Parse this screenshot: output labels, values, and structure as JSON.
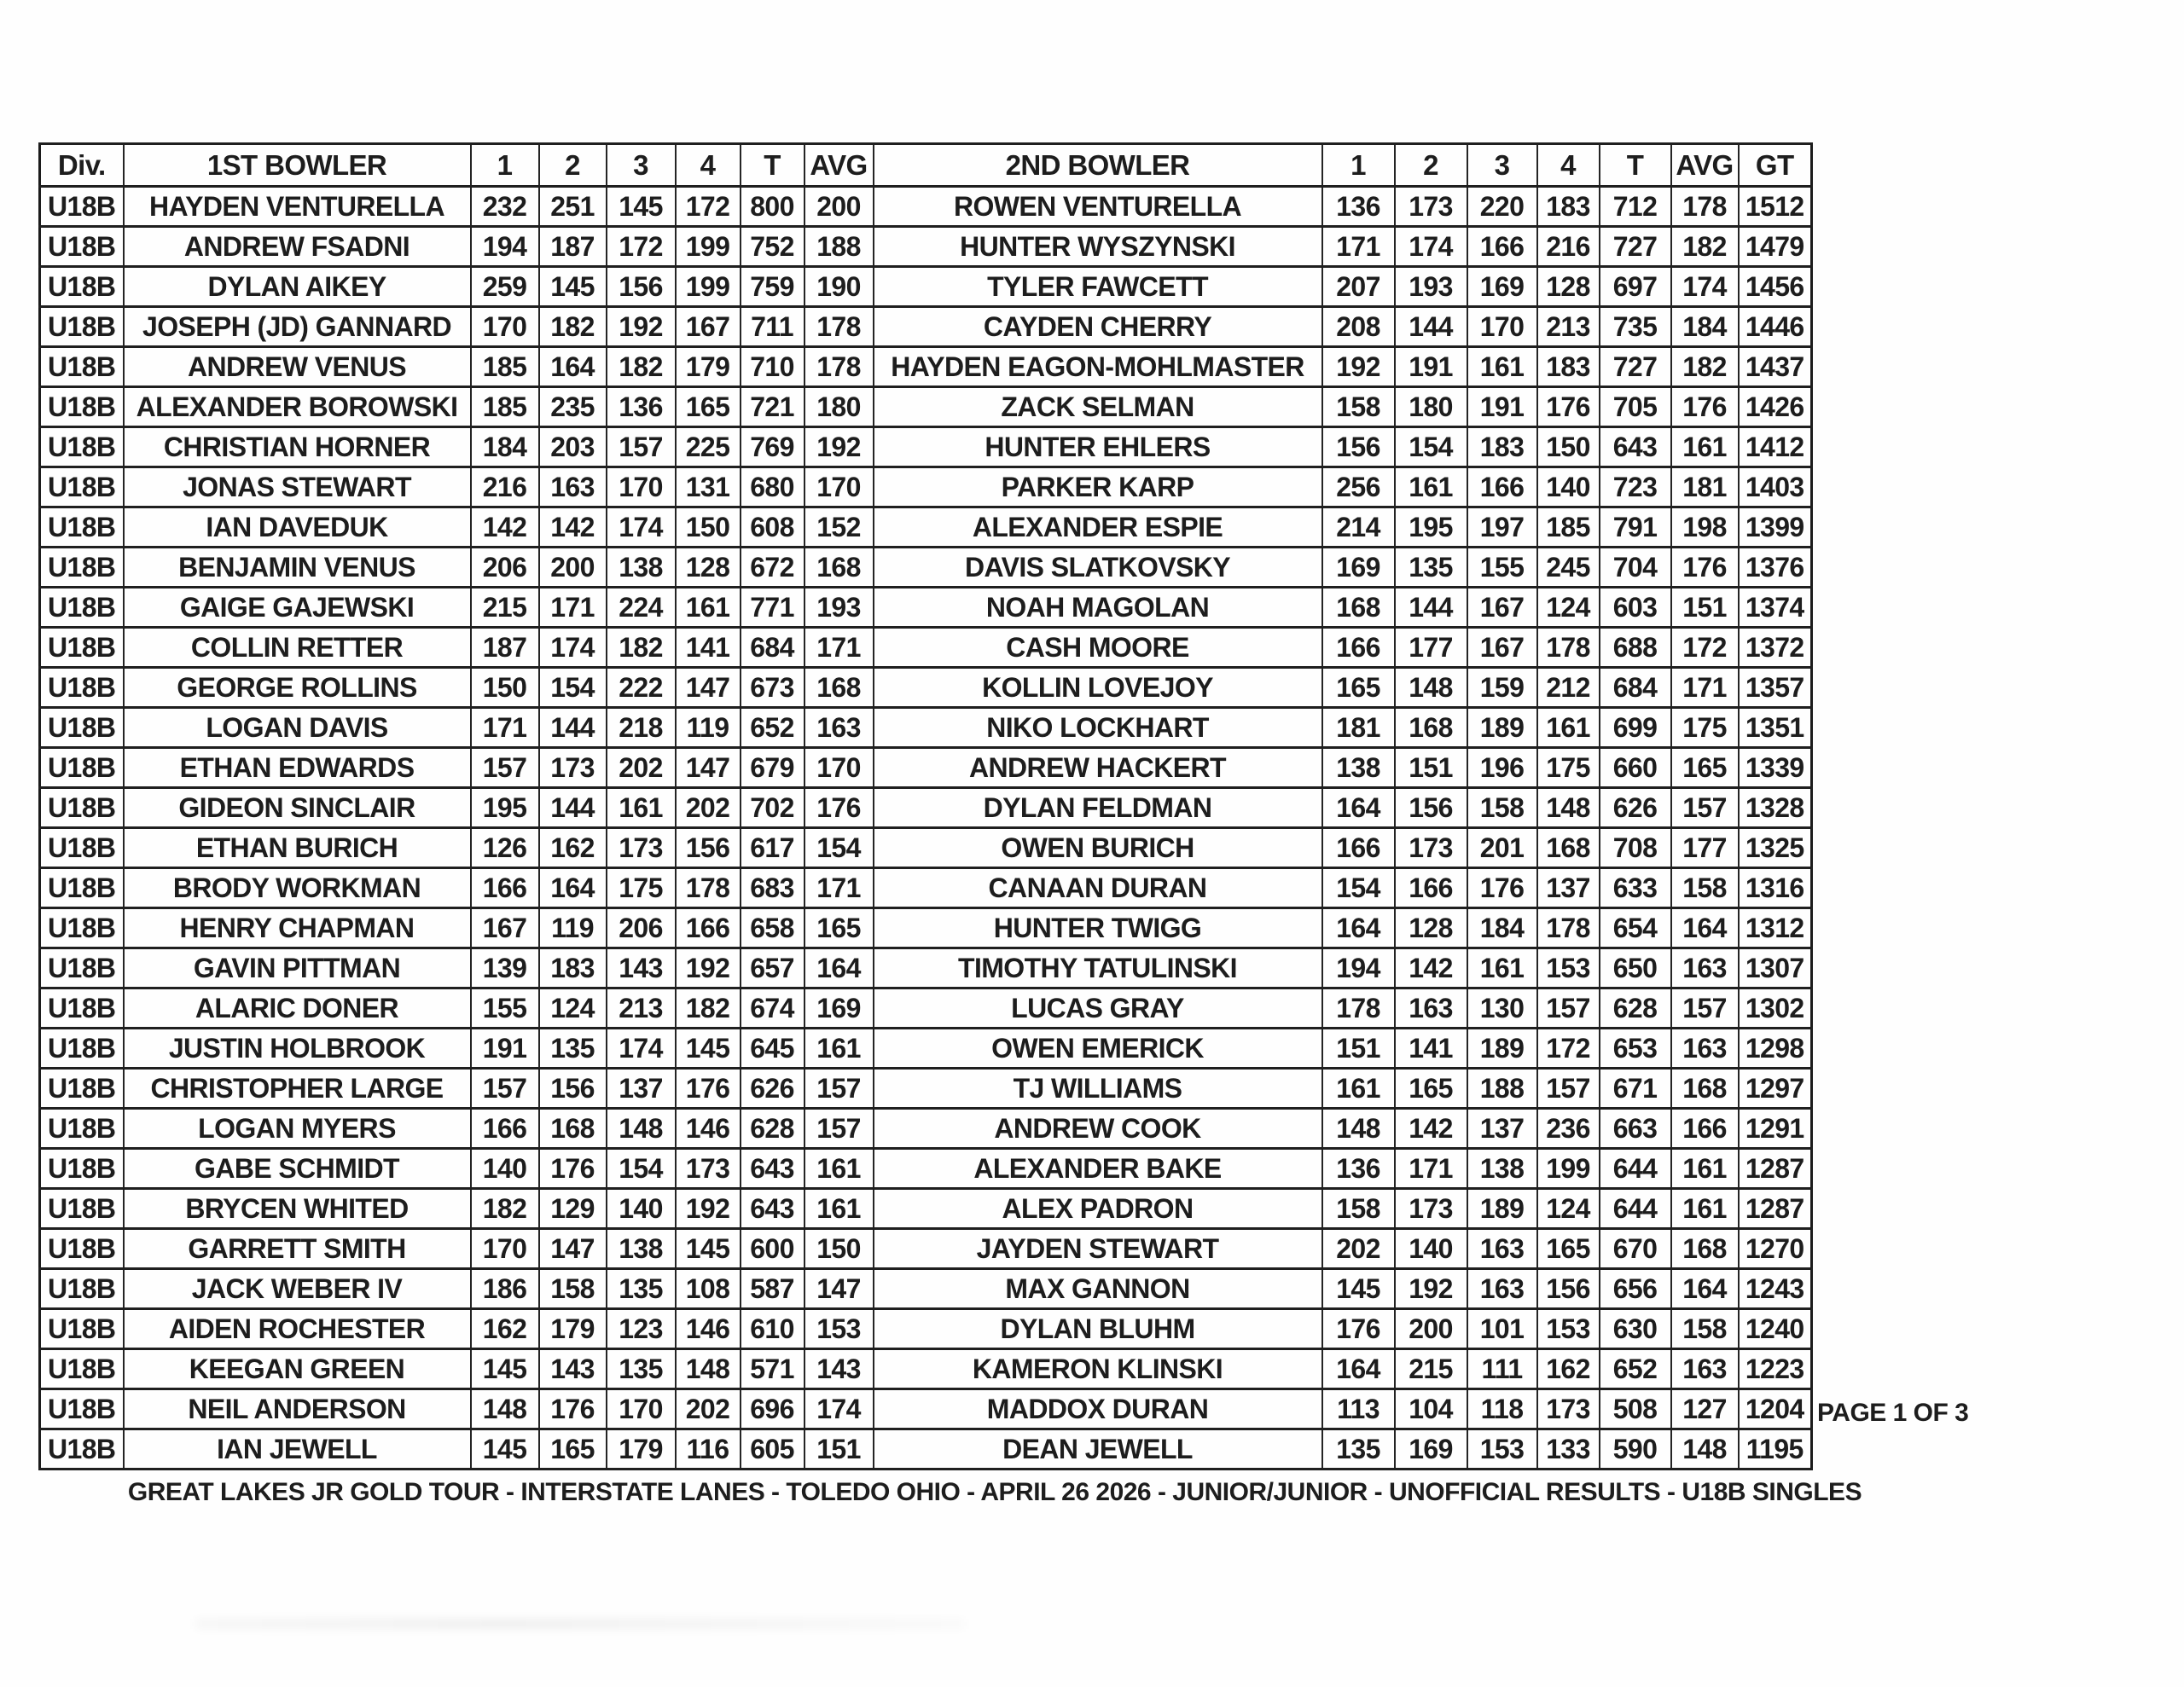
{
  "page": {
    "page_label": "PAGE 1 OF 3",
    "footer": "GREAT LAKES JR GOLD TOUR - INTERSTATE LANES - TOLEDO OHIO - APRIL 26 2026 - JUNIOR/JUNIOR - UNOFFICIAL RESULTS - U18B SINGLES"
  },
  "table": {
    "headers": [
      "Div.",
      "1ST BOWLER",
      "1",
      "2",
      "3",
      "4",
      "T",
      "AVG",
      "2ND BOWLER",
      "1",
      "2",
      "3",
      "4",
      "T",
      "AVG",
      "GT"
    ],
    "rows": [
      [
        "U18B",
        "HAYDEN VENTURELLA",
        232,
        251,
        145,
        172,
        800,
        200,
        "ROWEN VENTURELLA",
        136,
        173,
        220,
        183,
        712,
        178,
        1512
      ],
      [
        "U18B",
        "ANDREW FSADNI",
        194,
        187,
        172,
        199,
        752,
        188,
        "HUNTER WYSZYNSKI",
        171,
        174,
        166,
        216,
        727,
        182,
        1479
      ],
      [
        "U18B",
        "DYLAN AIKEY",
        259,
        145,
        156,
        199,
        759,
        190,
        "TYLER FAWCETT",
        207,
        193,
        169,
        128,
        697,
        174,
        1456
      ],
      [
        "U18B",
        "JOSEPH (JD) GANNARD",
        170,
        182,
        192,
        167,
        711,
        178,
        "CAYDEN CHERRY",
        208,
        144,
        170,
        213,
        735,
        184,
        1446
      ],
      [
        "U18B",
        "ANDREW VENUS",
        185,
        164,
        182,
        179,
        710,
        178,
        "HAYDEN EAGON-MOHLMASTER",
        192,
        191,
        161,
        183,
        727,
        182,
        1437
      ],
      [
        "U18B",
        "ALEXANDER BOROWSKI",
        185,
        235,
        136,
        165,
        721,
        180,
        "ZACK SELMAN",
        158,
        180,
        191,
        176,
        705,
        176,
        1426
      ],
      [
        "U18B",
        "CHRISTIAN HORNER",
        184,
        203,
        157,
        225,
        769,
        192,
        "HUNTER EHLERS",
        156,
        154,
        183,
        150,
        643,
        161,
        1412
      ],
      [
        "U18B",
        "JONAS STEWART",
        216,
        163,
        170,
        131,
        680,
        170,
        "PARKER KARP",
        256,
        161,
        166,
        140,
        723,
        181,
        1403
      ],
      [
        "U18B",
        "IAN DAVEDUK",
        142,
        142,
        174,
        150,
        608,
        152,
        "ALEXANDER ESPIE",
        214,
        195,
        197,
        185,
        791,
        198,
        1399
      ],
      [
        "U18B",
        "BENJAMIN VENUS",
        206,
        200,
        138,
        128,
        672,
        168,
        "DAVIS SLATKOVSKY",
        169,
        135,
        155,
        245,
        704,
        176,
        1376
      ],
      [
        "U18B",
        "GAIGE GAJEWSKI",
        215,
        171,
        224,
        161,
        771,
        193,
        "NOAH MAGOLAN",
        168,
        144,
        167,
        124,
        603,
        151,
        1374
      ],
      [
        "U18B",
        "COLLIN RETTER",
        187,
        174,
        182,
        141,
        684,
        171,
        "CASH MOORE",
        166,
        177,
        167,
        178,
        688,
        172,
        1372
      ],
      [
        "U18B",
        "GEORGE ROLLINS",
        150,
        154,
        222,
        147,
        673,
        168,
        "KOLLIN LOVEJOY",
        165,
        148,
        159,
        212,
        684,
        171,
        1357
      ],
      [
        "U18B",
        "LOGAN DAVIS",
        171,
        144,
        218,
        119,
        652,
        163,
        "NIKO LOCKHART",
        181,
        168,
        189,
        161,
        699,
        175,
        1351
      ],
      [
        "U18B",
        "ETHAN EDWARDS",
        157,
        173,
        202,
        147,
        679,
        170,
        "ANDREW HACKERT",
        138,
        151,
        196,
        175,
        660,
        165,
        1339
      ],
      [
        "U18B",
        "GIDEON SINCLAIR",
        195,
        144,
        161,
        202,
        702,
        176,
        "DYLAN FELDMAN",
        164,
        156,
        158,
        148,
        626,
        157,
        1328
      ],
      [
        "U18B",
        "ETHAN BURICH",
        126,
        162,
        173,
        156,
        617,
        154,
        "OWEN BURICH",
        166,
        173,
        201,
        168,
        708,
        177,
        1325
      ],
      [
        "U18B",
        "BRODY WORKMAN",
        166,
        164,
        175,
        178,
        683,
        171,
        "CANAAN DURAN",
        154,
        166,
        176,
        137,
        633,
        158,
        1316
      ],
      [
        "U18B",
        "HENRY CHAPMAN",
        167,
        119,
        206,
        166,
        658,
        165,
        "HUNTER TWIGG",
        164,
        128,
        184,
        178,
        654,
        164,
        1312
      ],
      [
        "U18B",
        "GAVIN PITTMAN",
        139,
        183,
        143,
        192,
        657,
        164,
        "TIMOTHY TATULINSKI",
        194,
        142,
        161,
        153,
        650,
        163,
        1307
      ],
      [
        "U18B",
        "ALARIC DONER",
        155,
        124,
        213,
        182,
        674,
        169,
        "LUCAS GRAY",
        178,
        163,
        130,
        157,
        628,
        157,
        1302
      ],
      [
        "U18B",
        "JUSTIN HOLBROOK",
        191,
        135,
        174,
        145,
        645,
        161,
        "OWEN EMERICK",
        151,
        141,
        189,
        172,
        653,
        163,
        1298
      ],
      [
        "U18B",
        "CHRISTOPHER LARGE",
        157,
        156,
        137,
        176,
        626,
        157,
        "TJ WILLIAMS",
        161,
        165,
        188,
        157,
        671,
        168,
        1297
      ],
      [
        "U18B",
        "LOGAN MYERS",
        166,
        168,
        148,
        146,
        628,
        157,
        "ANDREW COOK",
        148,
        142,
        137,
        236,
        663,
        166,
        1291
      ],
      [
        "U18B",
        "GABE SCHMIDT",
        140,
        176,
        154,
        173,
        643,
        161,
        "ALEXANDER BAKE",
        136,
        171,
        138,
        199,
        644,
        161,
        1287
      ],
      [
        "U18B",
        "BRYCEN WHITED",
        182,
        129,
        140,
        192,
        643,
        161,
        "ALEX PADRON",
        158,
        173,
        189,
        124,
        644,
        161,
        1287
      ],
      [
        "U18B",
        "GARRETT SMITH",
        170,
        147,
        138,
        145,
        600,
        150,
        "JAYDEN STEWART",
        202,
        140,
        163,
        165,
        670,
        168,
        1270
      ],
      [
        "U18B",
        "JACK WEBER IV",
        186,
        158,
        135,
        108,
        587,
        147,
        "MAX GANNON",
        145,
        192,
        163,
        156,
        656,
        164,
        1243
      ],
      [
        "U18B",
        "AIDEN ROCHESTER",
        162,
        179,
        123,
        146,
        610,
        153,
        "DYLAN BLUHM",
        176,
        200,
        101,
        153,
        630,
        158,
        1240
      ],
      [
        "U18B",
        "KEEGAN GREEN",
        145,
        143,
        135,
        148,
        571,
        143,
        "KAMERON KLINSKI",
        164,
        215,
        111,
        162,
        652,
        163,
        1223
      ],
      [
        "U18B",
        "NEIL ANDERSON",
        148,
        176,
        170,
        202,
        696,
        174,
        "MADDOX DURAN",
        113,
        104,
        118,
        173,
        508,
        127,
        1204
      ],
      [
        "U18B",
        "IAN JEWELL",
        145,
        165,
        179,
        116,
        605,
        151,
        "DEAN JEWELL",
        135,
        169,
        153,
        133,
        590,
        148,
        1195
      ]
    ]
  }
}
